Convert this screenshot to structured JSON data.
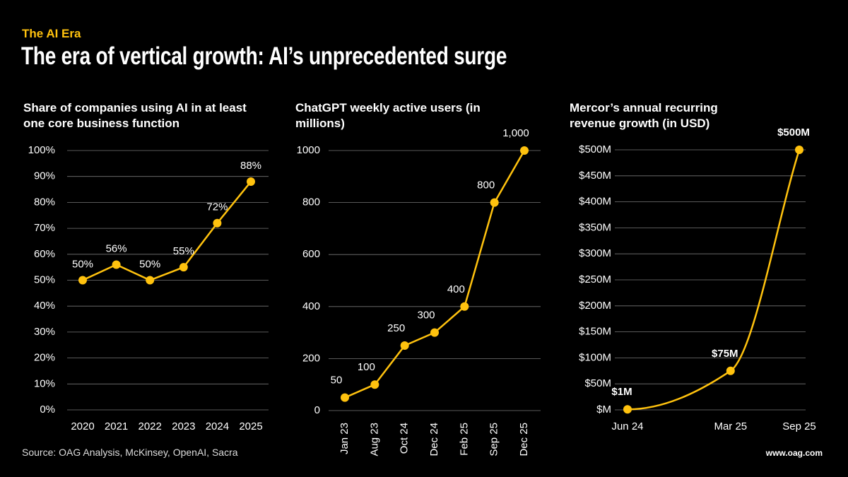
{
  "kicker": "The AI Era",
  "title": "The era of vertical growth: AI’s unprecedented surge",
  "source": "Source: OAG Analysis, McKinsey, OpenAI, Sacra",
  "website": "www.oag.com",
  "chart_data": [
    {
      "type": "line",
      "title": "Share of companies using AI in at least one core business function",
      "categories": [
        "2020",
        "2021",
        "2022",
        "2023",
        "2024",
        "2025"
      ],
      "values": [
        50,
        56,
        50,
        55,
        72,
        88
      ],
      "value_labels": [
        "50%",
        "56%",
        "50%",
        "55%",
        "72%",
        "88%"
      ],
      "color": "#ffc20e",
      "ylim": [
        0,
        100
      ],
      "yticks": [
        {
          "value": 0,
          "label": "0%"
        },
        {
          "value": 10,
          "label": "10%"
        },
        {
          "value": 20,
          "label": "20%"
        },
        {
          "value": 30,
          "label": "30%"
        },
        {
          "value": 40,
          "label": "40%"
        },
        {
          "value": 50,
          "label": "50%"
        },
        {
          "value": 60,
          "label": "60%"
        },
        {
          "value": 70,
          "label": "70%"
        },
        {
          "value": 80,
          "label": "80%"
        },
        {
          "value": 90,
          "label": "90%"
        },
        {
          "value": 100,
          "label": "100%"
        }
      ],
      "grid": true
    },
    {
      "type": "line",
      "title": "ChatGPT weekly active users (in millions)",
      "categories": [
        "Jan 23",
        "Aug 23",
        "Oct 24",
        "Dec 24",
        "Feb 25",
        "Sep 25",
        "Dec 25"
      ],
      "values": [
        50,
        100,
        250,
        300,
        400,
        800,
        1000
      ],
      "value_labels": [
        "50",
        "100",
        "250",
        "300",
        "400",
        "800",
        "1,000"
      ],
      "color": "#ffc20e",
      "ylim": [
        0,
        1000
      ],
      "yticks": [
        0,
        200,
        400,
        600,
        800,
        1000
      ],
      "grid": true
    },
    {
      "type": "smooth-line",
      "title": "Mercor’s annual recurring revenue growth (in USD)",
      "x": [
        "Jun 24",
        "Mar 25",
        "Sep 25"
      ],
      "values": [
        1000000,
        75000000,
        500000000
      ],
      "value_labels": [
        "$1M",
        "$75M",
        "$500M"
      ],
      "color": "#ffc20e",
      "ylim": [
        0,
        500000000
      ],
      "yticks": [
        {
          "value": 0,
          "label": "$M"
        },
        {
          "value": 50000000,
          "label": "$50M"
        },
        {
          "value": 100000000,
          "label": "$100M"
        },
        {
          "value": 150000000,
          "label": "$150M"
        },
        {
          "value": 200000000,
          "label": "$200M"
        },
        {
          "value": 250000000,
          "label": "$250M"
        },
        {
          "value": 300000000,
          "label": "$300M"
        },
        {
          "value": 350000000,
          "label": "$350M"
        },
        {
          "value": 400000000,
          "label": "$400M"
        },
        {
          "value": 450000000,
          "label": "$450M"
        },
        {
          "value": 500000000,
          "label": "$500M"
        }
      ],
      "grid": true
    }
  ]
}
